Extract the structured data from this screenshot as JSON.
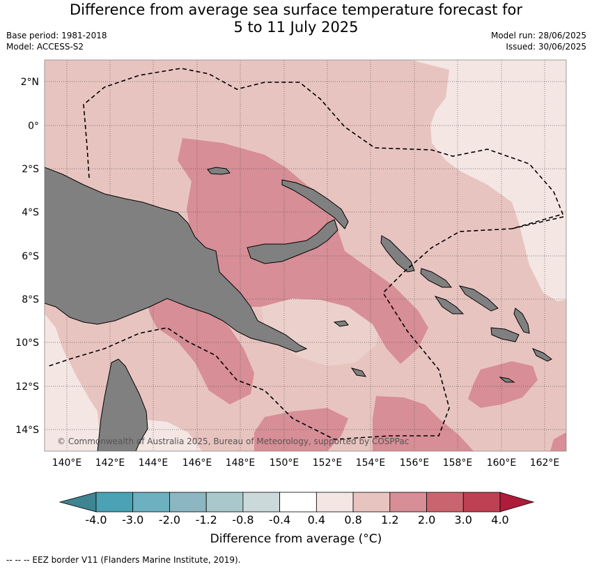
{
  "title_line1": "Difference from average sea surface temperature forecast for",
  "title_line2": "5 to 11 July 2025",
  "base_period": "Base period: 1981-2018",
  "model": "Model: ACCESS-S2",
  "model_run": "Model run: 28/06/2025",
  "issued": "Issued: 30/06/2025",
  "copyright": "© Commonwealth of Australia 2025, Bureau of Meteorology, supported by COSPPac",
  "lat_labels": [
    "2°N",
    "0°",
    "2°S",
    "4°S",
    "6°S",
    "8°S",
    "10°S",
    "12°S",
    "14°S"
  ],
  "lon_labels": [
    "140°E",
    "142°E",
    "144°E",
    "146°E",
    "148°E",
    "150°E",
    "152°E",
    "154°E",
    "156°E",
    "158°E",
    "160°E",
    "162°E"
  ],
  "colorbar": {
    "ticks": [
      "-4.0",
      "-3.0",
      "-2.0",
      "-1.2",
      "-0.8",
      "-0.4",
      "0.4",
      "0.8",
      "1.2",
      "2.0",
      "3.0",
      "4.0"
    ],
    "colors": [
      "#3e8491",
      "#4aa2b4",
      "#6db0c0",
      "#8bb6c2",
      "#a8c8cc",
      "#cbd9db",
      "#ffffff",
      "#f4e6e3",
      "#e8c4c0",
      "#d78e96",
      "#ca6570",
      "#bd4153",
      "#ad1c3a"
    ],
    "title": "Difference from average (°C)"
  },
  "legend": "--  --  -- EEZ border V11 (Flanders Marine Institute, 2019).",
  "colors": {
    "land": "#808080",
    "light": "#f4e6e3",
    "medium": "#e8c4c0",
    "strong": "#d78e96"
  }
}
